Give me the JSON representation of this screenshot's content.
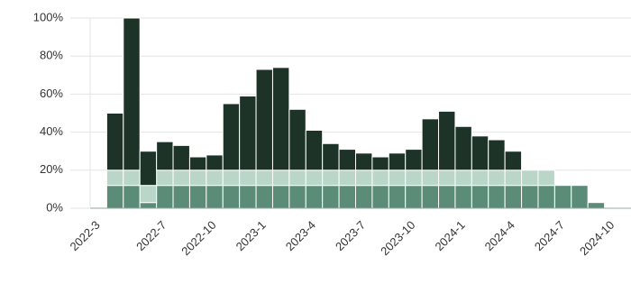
{
  "chart_data": {
    "type": "stacked_bar",
    "categories": [
      "2022-3",
      null,
      null,
      null,
      "2022-7",
      null,
      null,
      "2022-10",
      null,
      null,
      "2023-1",
      null,
      null,
      "2023-4",
      null,
      null,
      "2023-7",
      null,
      null,
      "2023-10",
      null,
      null,
      "2024-1",
      null,
      null,
      "2024-4",
      null,
      null,
      "2024-7",
      null,
      null,
      "2024-10"
    ],
    "series": [
      {
        "color": "#5b8c78",
        "values": [
          0.5,
          12,
          12,
          3,
          12,
          12,
          12,
          12,
          12,
          12,
          12,
          12,
          12,
          12,
          12,
          12,
          12,
          12,
          12,
          12,
          12,
          12,
          12,
          12,
          12,
          12,
          12,
          12,
          12,
          12,
          3,
          0
        ]
      },
      {
        "color": "#b9d6c8",
        "values": [
          0,
          8,
          8,
          9,
          8,
          8,
          8,
          8,
          8,
          8,
          8,
          8,
          8,
          8,
          8,
          8,
          8,
          8,
          8,
          8,
          8,
          8,
          8,
          8,
          8,
          8,
          8,
          8,
          0,
          0,
          0,
          0
        ]
      },
      {
        "color": "#1e3328",
        "values": [
          0,
          30,
          80,
          18,
          15,
          13,
          7,
          8,
          35,
          39,
          53,
          54,
          32,
          21,
          14,
          11,
          9,
          7,
          9,
          11,
          27,
          31,
          23,
          18,
          16,
          10,
          0,
          0,
          0,
          0,
          0,
          0
        ]
      }
    ],
    "ylim": [
      0,
      100
    ],
    "yticks": [
      {
        "value": 0,
        "label": "0%"
      },
      {
        "value": 20,
        "label": "20%"
      },
      {
        "value": 40,
        "label": "40%"
      },
      {
        "value": 60,
        "label": "60%"
      },
      {
        "value": 80,
        "label": "80%"
      },
      {
        "value": 100,
        "label": "100%"
      }
    ],
    "grid": true
  }
}
